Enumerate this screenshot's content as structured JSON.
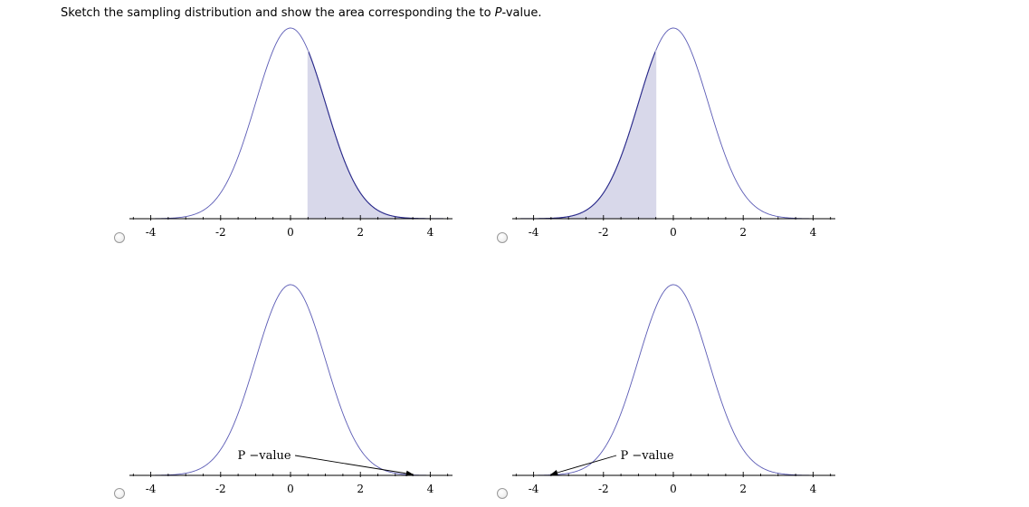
{
  "question": {
    "text_before": "Sketch the sampling distribution and show the area corresponding the to ",
    "text_italic": "P",
    "text_after": "-value."
  },
  "colors": {
    "curve": "#5b5bb5",
    "shade_fill": "#d8d8ea",
    "shade_edge": "#2b2b8a",
    "axis": "#000000"
  },
  "chart_data": [
    {
      "type": "area",
      "option": 1,
      "curve": "standard-normal",
      "xlim": [
        -4.5,
        4.6
      ],
      "ticks": [
        "-4",
        "-2",
        "0",
        "2",
        "4"
      ],
      "tick_values": [
        -4,
        -2,
        0,
        2,
        4
      ],
      "shaded_region": {
        "from": 0.5,
        "to": 4.6,
        "tail": "right"
      },
      "annotation": ""
    },
    {
      "type": "area",
      "option": 2,
      "curve": "standard-normal",
      "xlim": [
        -4.5,
        4.6
      ],
      "ticks": [
        "-4",
        "-2",
        "0",
        "2",
        "4"
      ],
      "tick_values": [
        -4,
        -2,
        0,
        2,
        4
      ],
      "shaded_region": {
        "from": -4.5,
        "to": -0.5,
        "tail": "left"
      },
      "annotation": ""
    },
    {
      "type": "line",
      "option": 3,
      "curve": "standard-normal",
      "xlim": [
        -4.5,
        4.6
      ],
      "ticks": [
        "-4",
        "-2",
        "0",
        "2",
        "4"
      ],
      "tick_values": [
        -4,
        -2,
        0,
        2,
        4
      ],
      "annotation": "P −value",
      "annotation_x": -0.75,
      "arrow_target_x": 3.5,
      "arrow_direction": "right"
    },
    {
      "type": "line",
      "option": 4,
      "curve": "standard-normal",
      "xlim": [
        -4.5,
        4.6
      ],
      "ticks": [
        "-4",
        "-2",
        "0",
        "2",
        "4"
      ],
      "tick_values": [
        -4,
        -2,
        0,
        2,
        4
      ],
      "annotation": "P −value",
      "annotation_x": -0.75,
      "arrow_target_x": -3.5,
      "arrow_direction": "left"
    }
  ]
}
